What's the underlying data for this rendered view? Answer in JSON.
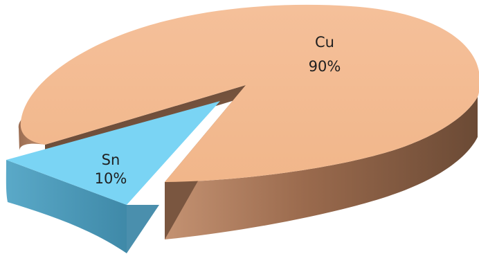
{
  "chart_data": {
    "type": "pie",
    "style": "3d-exploded",
    "slices": [
      {
        "name": "Cu",
        "value": 90,
        "label": "90%",
        "color": "#f4b98f",
        "side_color": "#8a5f44"
      },
      {
        "name": "Sn",
        "value": 10,
        "label": "10%",
        "color": "#79d5f5",
        "side_color": "#4f93b0",
        "exploded": true
      }
    ],
    "title": "",
    "legend": "none"
  }
}
